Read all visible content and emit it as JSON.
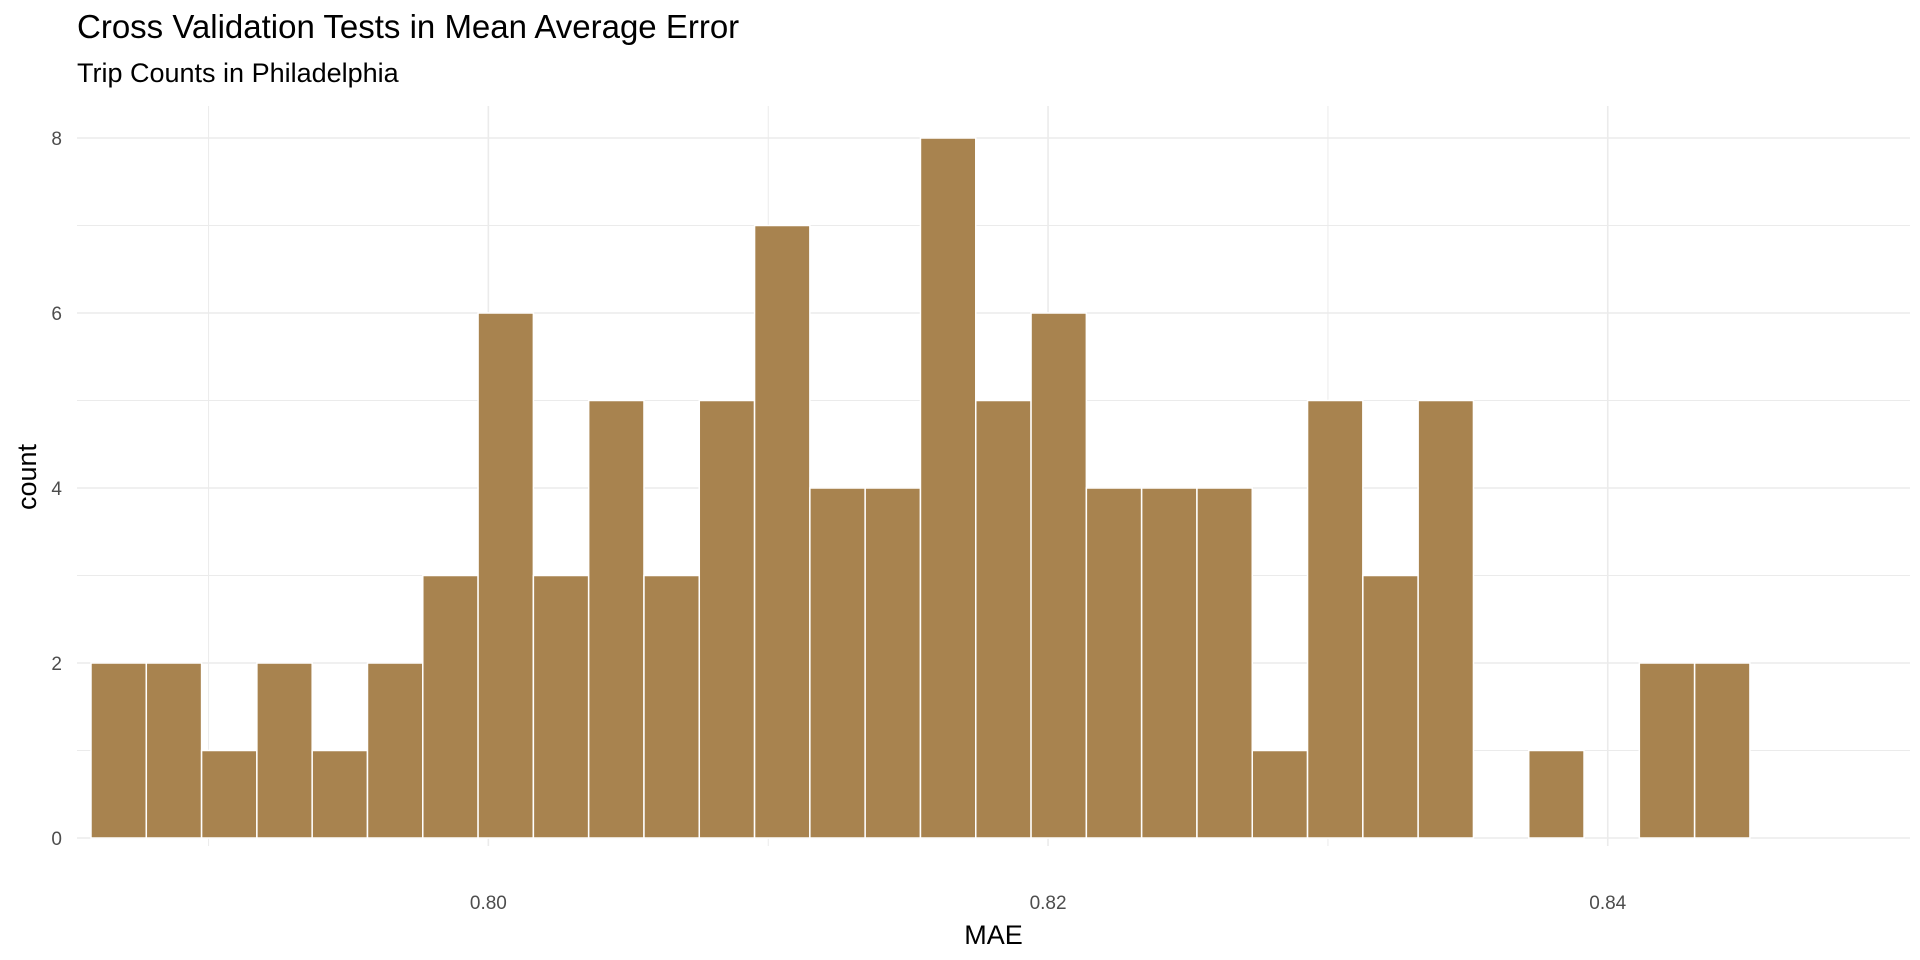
{
  "chart_data": {
    "type": "bar",
    "title": "Cross Validation Tests in Mean Average Error",
    "subtitle": "Trip Counts in Philadelphia",
    "xlabel": "MAE",
    "ylabel": "count",
    "x_ticks": [
      0.8,
      0.82,
      0.84
    ],
    "x_tick_labels": [
      "0.80",
      "0.82",
      "0.84"
    ],
    "y_ticks": [
      0,
      2,
      4,
      6,
      8
    ],
    "y_tick_labels": [
      "0",
      "2",
      "4",
      "6",
      "8"
    ],
    "xlim": [
      0.7853,
      0.8508
    ],
    "ylim": [
      0,
      8.4
    ],
    "bin_width": 0.001976,
    "bin_start": 0.7858,
    "counts": [
      2,
      2,
      1,
      2,
      1,
      2,
      3,
      6,
      3,
      5,
      3,
      5,
      7,
      4,
      4,
      8,
      5,
      6,
      4,
      4,
      4,
      1,
      5,
      3,
      5,
      0,
      1,
      0,
      2,
      2
    ],
    "grid": true,
    "bar_color": "#a8834f",
    "bar_outline": "#ffffff",
    "grid_color": "#ebebeb"
  }
}
